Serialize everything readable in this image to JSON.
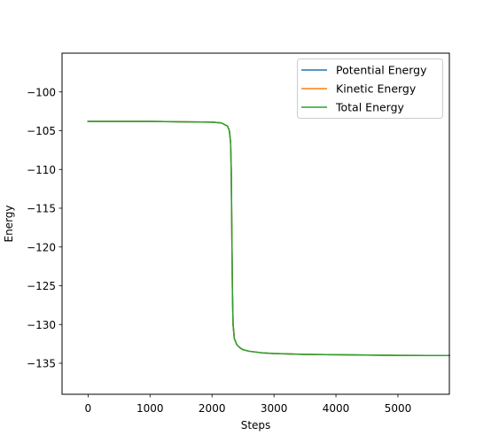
{
  "chart_data": {
    "type": "line",
    "title": "",
    "xlabel": "Steps",
    "ylabel": "Energy",
    "xlim": [
      -420,
      5830
    ],
    "ylim": [
      -139,
      -95
    ],
    "xticks": [
      0,
      1000,
      2000,
      3000,
      4000,
      5000
    ],
    "xtick_labels": [
      "0",
      "1000",
      "2000",
      "3000",
      "4000",
      "5000"
    ],
    "yticks": [
      -100,
      -105,
      -110,
      -115,
      -120,
      -125,
      -130,
      -135
    ],
    "ytick_labels": [
      "−100",
      "−105",
      "−110",
      "−115",
      "−120",
      "−125",
      "−130",
      "−135"
    ],
    "grid": false,
    "legend_position": "top-right",
    "series": [
      {
        "name": "Potential Energy",
        "color": "#1f77b4",
        "x": [
          0,
          500,
          1000,
          1500,
          2000,
          2150,
          2250,
          2280,
          2300,
          2310,
          2320,
          2330,
          2340,
          2360,
          2400,
          2450,
          2500,
          2600,
          2800,
          3000,
          3500,
          4000,
          4500,
          5000,
          5500,
          5830
        ],
        "y": [
          -103.8,
          -103.8,
          -103.8,
          -103.85,
          -103.9,
          -104.0,
          -104.4,
          -105.0,
          -106.5,
          -110.0,
          -118.0,
          -126.0,
          -130.0,
          -131.8,
          -132.6,
          -133.0,
          -133.25,
          -133.45,
          -133.65,
          -133.75,
          -133.85,
          -133.9,
          -133.95,
          -133.98,
          -134.0,
          -134.0
        ]
      },
      {
        "name": "Kinetic Energy",
        "color": "#ff7f0e",
        "x": [
          0,
          500,
          1000,
          1500,
          2000,
          2150,
          2250,
          2280,
          2300,
          2310,
          2320,
          2330,
          2340,
          2360,
          2400,
          2450,
          2500,
          2600,
          2800,
          3000,
          3500,
          4000,
          4500,
          5000,
          5500,
          5830
        ],
        "y": [
          -103.8,
          -103.8,
          -103.8,
          -103.85,
          -103.9,
          -104.0,
          -104.4,
          -105.0,
          -106.5,
          -110.0,
          -118.0,
          -126.0,
          -130.0,
          -131.8,
          -132.6,
          -133.0,
          -133.25,
          -133.45,
          -133.65,
          -133.75,
          -133.85,
          -133.9,
          -133.95,
          -133.98,
          -134.0,
          -134.0
        ]
      },
      {
        "name": "Total Energy",
        "color": "#2ca02c",
        "x": [
          0,
          500,
          1000,
          1500,
          2000,
          2150,
          2250,
          2280,
          2300,
          2310,
          2320,
          2330,
          2340,
          2360,
          2400,
          2450,
          2500,
          2600,
          2800,
          3000,
          3500,
          4000,
          4500,
          5000,
          5500,
          5830
        ],
        "y": [
          -103.8,
          -103.8,
          -103.8,
          -103.85,
          -103.9,
          -104.0,
          -104.4,
          -105.0,
          -106.5,
          -110.0,
          -118.0,
          -126.0,
          -130.0,
          -131.8,
          -132.6,
          -133.0,
          -133.25,
          -133.45,
          -133.65,
          -133.75,
          -133.85,
          -133.9,
          -133.95,
          -133.98,
          -134.0,
          -134.0
        ]
      }
    ]
  }
}
